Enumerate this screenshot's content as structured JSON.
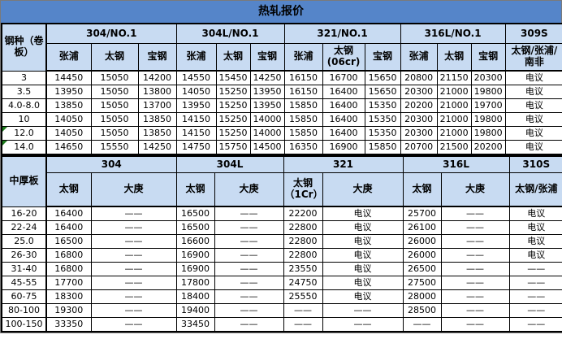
{
  "title": "热轧报价",
  "colors": {
    "title_bg": "#5585c9",
    "header_bg": "#c8dbf2",
    "grid": "#000000",
    "cell_bg": "#ffffff",
    "text": "#000000",
    "comment_triangle": "#1e7d1e"
  },
  "upper_table": {
    "corner_label": "钢种（卷板）",
    "groups": [
      {
        "label": "304/NO.1",
        "cols": [
          "张浦",
          "太钢",
          "宝钢"
        ]
      },
      {
        "label": "304L/NO.1",
        "cols": [
          "张浦",
          "太钢",
          "宝钢"
        ]
      },
      {
        "label": "321/NO.1",
        "cols": [
          "张浦",
          "太钢(06cr)",
          "宝钢"
        ]
      },
      {
        "label": "316L/NO.1",
        "cols": [
          "张浦",
          "太钢",
          "宝钢"
        ]
      },
      {
        "label": "309S",
        "cols": [
          "太钢/张浦/南非"
        ]
      }
    ],
    "rows": [
      {
        "label": "3",
        "note": false,
        "values": [
          "14450",
          "15050",
          "14200",
          "14550",
          "15450",
          "14250",
          "16150",
          "16700",
          "15650",
          "20800",
          "21150",
          "20300",
          "电议"
        ]
      },
      {
        "label": "3.5",
        "note": false,
        "values": [
          "13950",
          "15050",
          "13800",
          "14050",
          "15250",
          "13950",
          "16150",
          "16400",
          "15650",
          "20300",
          "21000",
          "19800",
          "电议"
        ]
      },
      {
        "label": "4.0-8.0",
        "note": false,
        "values": [
          "13850",
          "15050",
          "13700",
          "13950",
          "15250",
          "13950",
          "15850",
          "16400",
          "15350",
          "20200",
          "21000",
          "19700",
          "电议"
        ]
      },
      {
        "label": "10",
        "note": false,
        "values": [
          "14050",
          "15050",
          "13850",
          "14150",
          "15250",
          "14000",
          "15850",
          "16400",
          "15350",
          "20300",
          "21000",
          "19800",
          "电议"
        ]
      },
      {
        "label": "12.0",
        "note": true,
        "values": [
          "14050",
          "15050",
          "13850",
          "14150",
          "15250",
          "14000",
          "15850",
          "16400",
          "15350",
          "20300",
          "21000",
          "19800",
          "电议"
        ]
      },
      {
        "label": "14.0",
        "note": true,
        "values": [
          "14650",
          "15550",
          "14250",
          "14750",
          "15750",
          "14500",
          "16350",
          "16900",
          "15850",
          "20700",
          "21500",
          "20200",
          "电议"
        ]
      }
    ]
  },
  "lower_table": {
    "corner_label": "中厚板",
    "groups": [
      {
        "label": "304",
        "cols": [
          "太钢",
          "大庚"
        ]
      },
      {
        "label": "304L",
        "cols": [
          "太钢",
          "大庚"
        ]
      },
      {
        "label": "321",
        "cols": [
          "太钢（1Cr）",
          "大庚"
        ]
      },
      {
        "label": "316L",
        "cols": [
          "太钢",
          "大庚"
        ]
      },
      {
        "label": "310S",
        "cols": [
          "太钢/张浦"
        ]
      }
    ],
    "rows": [
      {
        "label": "16-20",
        "note": false,
        "values": [
          "16400",
          "——",
          "16500",
          "——",
          "22200",
          "电议",
          "25700",
          "——",
          "电议"
        ]
      },
      {
        "label": "22-24",
        "note": false,
        "values": [
          "16400",
          "——",
          "16500",
          "——",
          "22800",
          "电议",
          "26100",
          "——",
          "电议"
        ]
      },
      {
        "label": "25.0",
        "note": false,
        "values": [
          "16500",
          "——",
          "16600",
          "——",
          "22800",
          "电议",
          "26000",
          "——",
          "电议"
        ]
      },
      {
        "label": "26-30",
        "note": false,
        "values": [
          "16800",
          "——",
          "16900",
          "——",
          "22800",
          "电议",
          "26000",
          "——",
          "电议"
        ]
      },
      {
        "label": "31-40",
        "note": false,
        "values": [
          "16800",
          "——",
          "16900",
          "——",
          "23550",
          "电议",
          "26500",
          "——",
          "——"
        ]
      },
      {
        "label": "45-55",
        "note": false,
        "values": [
          "17700",
          "——",
          "17800",
          "——",
          "24750",
          "电议",
          "27500",
          "——",
          "——"
        ]
      },
      {
        "label": "60-75",
        "note": false,
        "values": [
          "18300",
          "——",
          "18400",
          "——",
          "25550",
          "电议",
          "28000",
          "——",
          "——"
        ]
      },
      {
        "label": "80-100",
        "note": false,
        "values": [
          "19300",
          "——",
          "19400",
          "——",
          "——",
          "——",
          "28500",
          "——",
          "——"
        ]
      },
      {
        "label": "100-150",
        "note": false,
        "values": [
          "33350",
          "——",
          "33450",
          "——",
          "——",
          "——",
          "——",
          "——",
          "——"
        ]
      }
    ]
  }
}
